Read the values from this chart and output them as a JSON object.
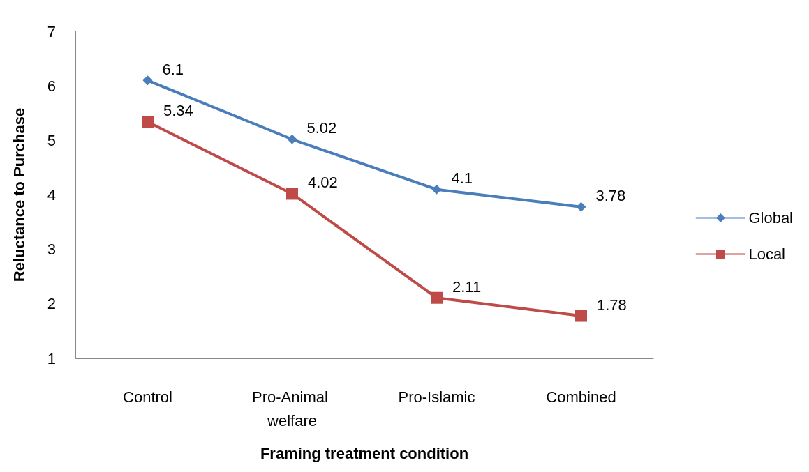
{
  "chart_data": {
    "type": "line",
    "xlabel": "Framing treatment condition",
    "ylabel": "Reluctance to Purchase",
    "categories": [
      "Control",
      "Pro-Animal welfare",
      "Pro-Islamic",
      "Combined"
    ],
    "series": [
      {
        "name": "Global",
        "color": "#4a7ebb",
        "marker": "diamond",
        "values": [
          6.1,
          5.02,
          4.1,
          3.78
        ]
      },
      {
        "name": "Local",
        "color": "#be4b48",
        "marker": "square",
        "values": [
          5.34,
          4.02,
          2.11,
          1.78
        ]
      }
    ],
    "ylim": [
      1,
      7
    ],
    "yticks": [
      1,
      2,
      3,
      4,
      5,
      6,
      7
    ],
    "grid": false,
    "legend": "right",
    "data_labels": true
  }
}
